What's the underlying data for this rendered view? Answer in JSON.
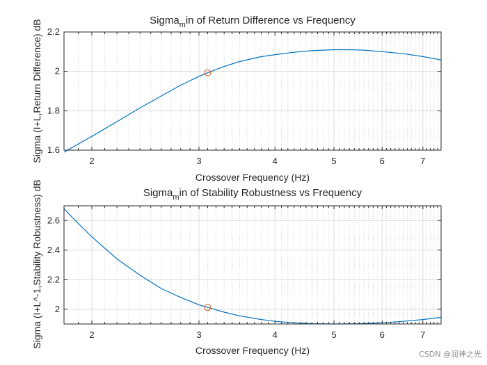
{
  "chart_data": [
    {
      "type": "line",
      "xscale": "log",
      "title_main": "Sigma",
      "title_sub": "m",
      "title_rest": "in of Return Difference vs Frequency",
      "xlabel": "Crossover Frequency (Hz)",
      "ylabel": "Sigma (I+L,Return Difference) dB",
      "xlim": [
        1.8,
        7.5
      ],
      "ylim": [
        1.6,
        2.2
      ],
      "xticks": [
        2,
        3,
        4,
        5,
        6,
        7
      ],
      "xtick_labels": [
        "2",
        "3",
        "4",
        "5",
        "6",
        "7"
      ],
      "xminor": [
        1.9,
        2.1,
        2.2,
        2.3,
        2.4,
        2.5,
        2.6,
        2.7,
        2.8,
        2.9,
        3.1,
        3.2,
        3.3,
        3.4,
        3.5,
        3.6,
        3.7,
        3.8,
        3.9,
        4.1,
        4.2,
        4.3,
        4.4,
        4.5,
        4.6,
        4.7,
        4.8,
        4.9,
        5.1,
        5.2,
        5.3,
        5.4,
        5.5,
        5.6,
        5.7,
        5.8,
        5.9,
        6.1,
        6.2,
        6.3,
        6.4,
        6.5,
        6.6,
        6.7,
        6.8,
        6.9,
        7.1,
        7.2,
        7.3,
        7.4
      ],
      "yticks": [
        1.6,
        1.8,
        2.0,
        2.2
      ],
      "ytick_labels": [
        "1.6",
        "1.8",
        "2",
        "2.2"
      ],
      "series": [
        {
          "name": "sigma_min",
          "x": [
            1.8,
            2.0,
            2.2,
            2.4,
            2.6,
            2.8,
            3.0,
            3.1,
            3.3,
            3.5,
            3.8,
            4.0,
            4.3,
            4.6,
            5.0,
            5.3,
            5.6,
            6.0,
            6.5,
            7.0,
            7.5
          ],
          "y": [
            1.59,
            1.67,
            1.745,
            1.815,
            1.875,
            1.93,
            1.975,
            1.993,
            2.025,
            2.05,
            2.075,
            2.085,
            2.097,
            2.105,
            2.11,
            2.11,
            2.108,
            2.1,
            2.09,
            2.075,
            2.058
          ]
        }
      ],
      "markers": [
        {
          "x": 3.1,
          "y": 1.993
        }
      ]
    },
    {
      "type": "line",
      "xscale": "log",
      "title_main": "Sigma",
      "title_sub": "m",
      "title_rest": "in of Stability Robustness vs Frequency",
      "xlabel": "Crossover Frequency (Hz)",
      "ylabel": "Sigma (I+L^-1,Stability Robustness) dB",
      "xlim": [
        1.8,
        7.5
      ],
      "ylim": [
        1.9,
        2.7
      ],
      "xticks": [
        2,
        3,
        4,
        5,
        6,
        7
      ],
      "xtick_labels": [
        "2",
        "3",
        "4",
        "5",
        "6",
        "7"
      ],
      "xminor": [
        1.9,
        2.1,
        2.2,
        2.3,
        2.4,
        2.5,
        2.6,
        2.7,
        2.8,
        2.9,
        3.1,
        3.2,
        3.3,
        3.4,
        3.5,
        3.6,
        3.7,
        3.8,
        3.9,
        4.1,
        4.2,
        4.3,
        4.4,
        4.5,
        4.6,
        4.7,
        4.8,
        4.9,
        5.1,
        5.2,
        5.3,
        5.4,
        5.5,
        5.6,
        5.7,
        5.8,
        5.9,
        6.1,
        6.2,
        6.3,
        6.4,
        6.5,
        6.6,
        6.7,
        6.8,
        6.9,
        7.1,
        7.2,
        7.3,
        7.4
      ],
      "yticks": [
        2.0,
        2.2,
        2.4,
        2.6
      ],
      "ytick_labels": [
        "2",
        "2.2",
        "2.4",
        "2.6"
      ],
      "series": [
        {
          "name": "sigma_min",
          "x": [
            1.8,
            1.9,
            2.0,
            2.2,
            2.4,
            2.6,
            2.8,
            3.0,
            3.1,
            3.3,
            3.5,
            3.8,
            4.0,
            4.3,
            4.6,
            5.0,
            5.5,
            6.0,
            6.5,
            7.0,
            7.5
          ],
          "y": [
            2.68,
            2.58,
            2.49,
            2.34,
            2.23,
            2.14,
            2.08,
            2.03,
            2.012,
            1.98,
            1.955,
            1.93,
            1.918,
            1.908,
            1.902,
            1.9,
            1.902,
            1.908,
            1.918,
            1.93,
            1.945
          ]
        }
      ],
      "markers": [
        {
          "x": 3.1,
          "y": 2.012
        }
      ]
    }
  ],
  "watermark": "CSDN @润神之光"
}
